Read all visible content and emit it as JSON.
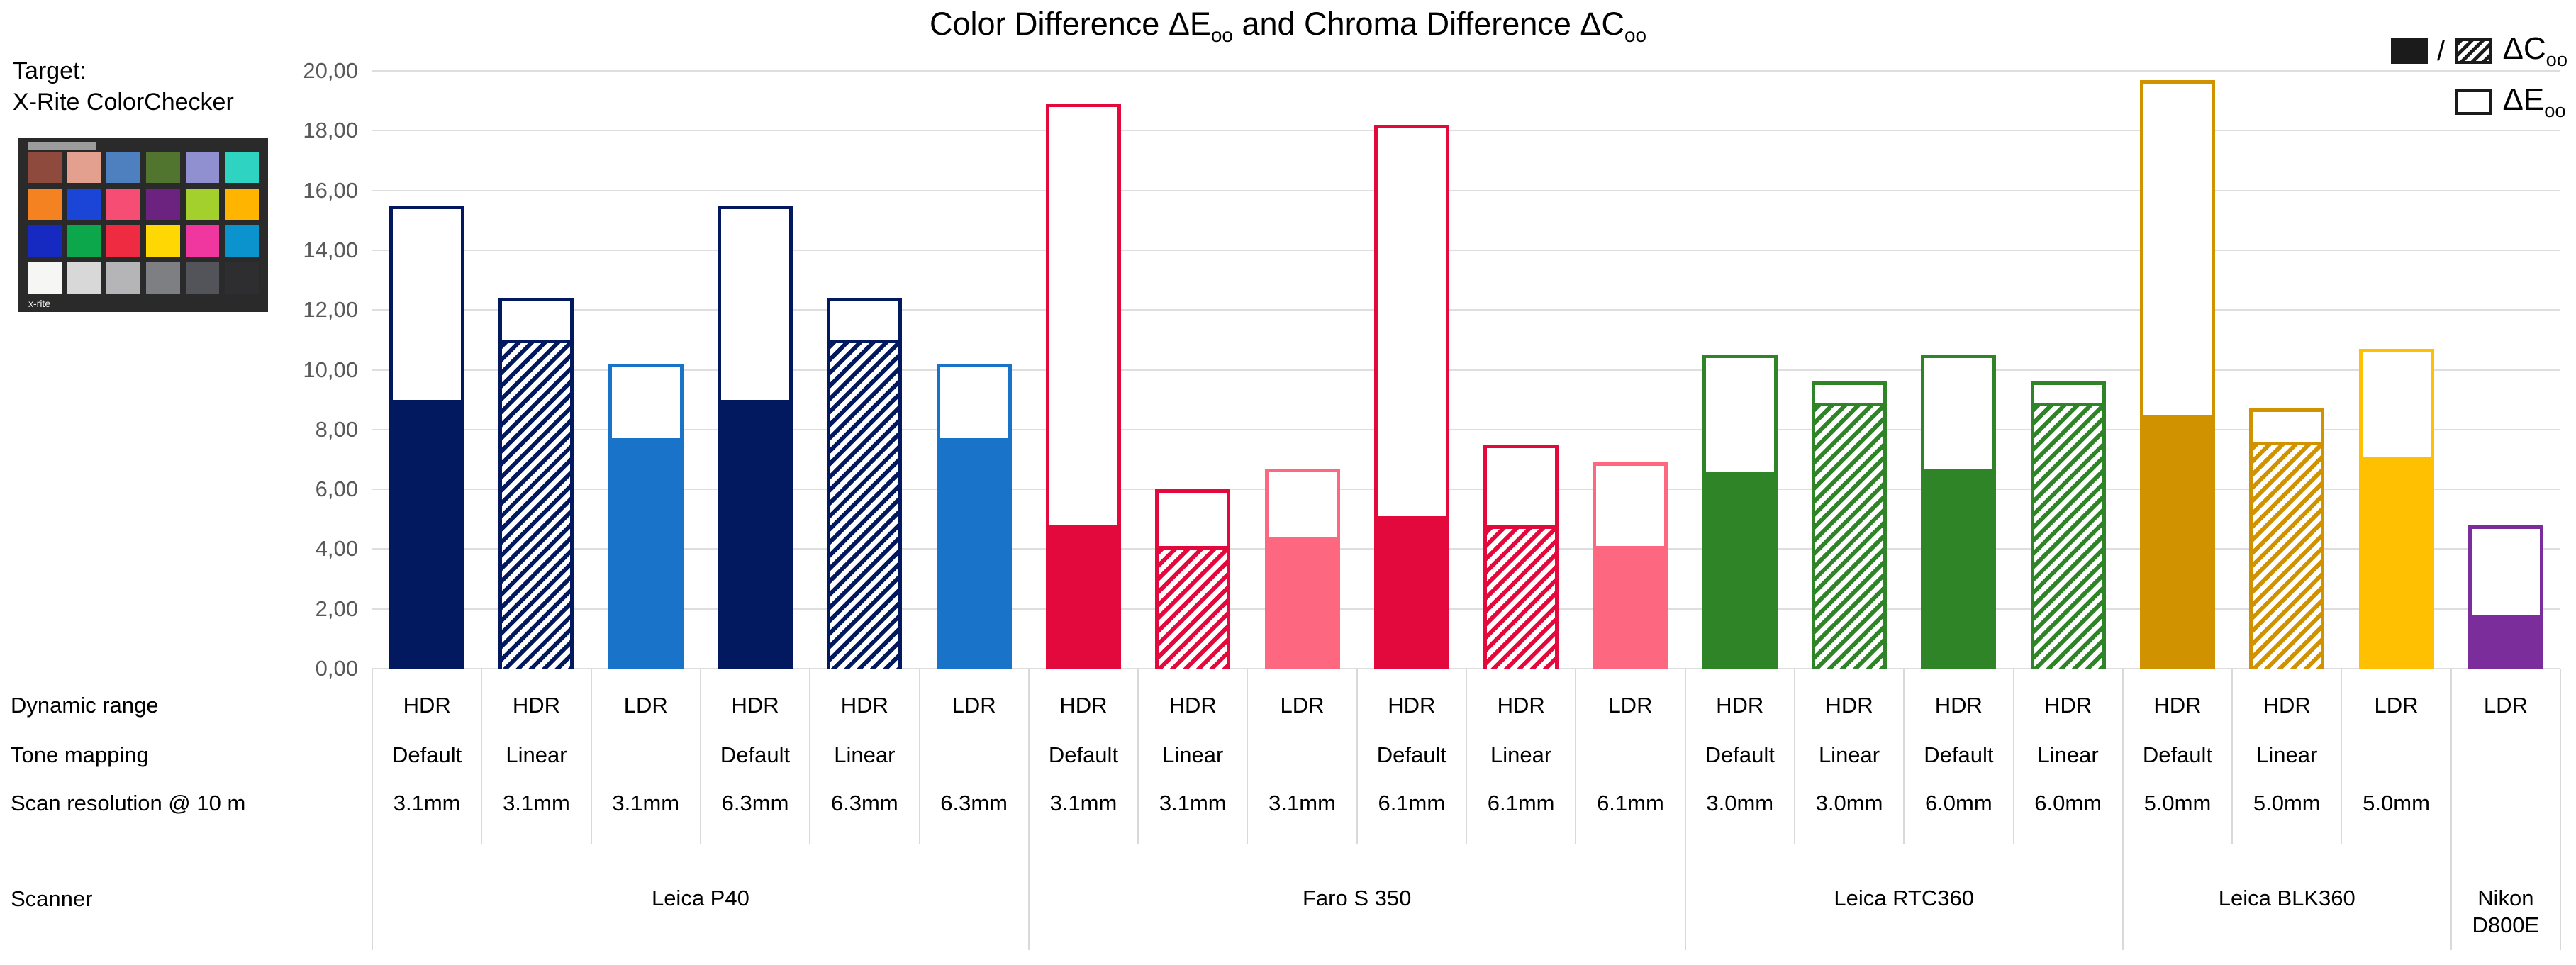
{
  "title": {
    "part1": "Color Difference ΔE",
    "sub1": "oo",
    "part2": " and Chroma Difference ΔC",
    "sub2": "oo"
  },
  "legend": {
    "slash": "/",
    "dc_label": "ΔC",
    "dc_sub": "oo",
    "de_label": "ΔE",
    "de_sub": "oo"
  },
  "target": {
    "caption_line1": "Target:",
    "caption_line2": "X-Rite ColorChecker",
    "brand": "x-rite",
    "patches": [
      "#8d4a3d",
      "#e3a08f",
      "#4e7fbe",
      "#51742e",
      "#9090d0",
      "#2fd3c2",
      "#f58220",
      "#1b45d7",
      "#f54d74",
      "#6c2380",
      "#a3d02c",
      "#ffb400",
      "#1629c0",
      "#0ca64b",
      "#ee2b41",
      "#ffd702",
      "#f0369f",
      "#0b93cd",
      "#f6f6f4",
      "#d8d8d8",
      "#b5b5b7",
      "#7e7f83",
      "#525459",
      "#2e2e30"
    ]
  },
  "y_axis": {
    "tick_labels": [
      "20,00",
      "18,00",
      "16,00",
      "14,00",
      "12,00",
      "10,00",
      "8,00",
      "6,00",
      "4,00",
      "2,00",
      "0,00"
    ]
  },
  "row_headers": {
    "dynamic_range": "Dynamic range",
    "tone_mapping": "Tone mapping",
    "resolution": "Scan resolution @ 10 m",
    "scanner": "Scanner"
  },
  "colors": {
    "gridline": "#dedede",
    "axis_text": "#595959",
    "legend_ink": "#1b1b1b"
  },
  "chart_data": {
    "type": "bar",
    "title": "Color Difference ΔEoo and Chroma Difference ΔCoo",
    "ylabel": "",
    "xlabel": "",
    "ylim": [
      0,
      20
    ],
    "ytick_step": 2,
    "grid": "horizontal",
    "legend": [
      {
        "label": "ΔCoo",
        "style": "filled / hatched"
      },
      {
        "label": "ΔEoo",
        "style": "outline"
      }
    ],
    "series_semantics": {
      "dE": "total outlined bar height = ΔEoo",
      "dC": "filled or hatched lower portion = ΔCoo"
    },
    "groups": [
      {
        "scanner": "Leica P40",
        "bars": [
          {
            "dynamic_range": "HDR",
            "tone_mapping": "Default",
            "resolution": "3.1mm",
            "dE": 15.5,
            "dC": 9.0,
            "color": "#03195f",
            "fill": "solid"
          },
          {
            "dynamic_range": "HDR",
            "tone_mapping": "Linear",
            "resolution": "3.1mm",
            "dE": 12.4,
            "dC": 11.0,
            "color": "#03195f",
            "fill": "hatch"
          },
          {
            "dynamic_range": "LDR",
            "tone_mapping": "",
            "resolution": "3.1mm",
            "dE": 10.2,
            "dC": 7.7,
            "color": "#1873c9",
            "fill": "solid"
          },
          {
            "dynamic_range": "HDR",
            "tone_mapping": "Default",
            "resolution": "6.3mm",
            "dE": 15.5,
            "dC": 9.0,
            "color": "#03195f",
            "fill": "solid"
          },
          {
            "dynamic_range": "HDR",
            "tone_mapping": "Linear",
            "resolution": "6.3mm",
            "dE": 12.4,
            "dC": 11.0,
            "color": "#03195f",
            "fill": "hatch"
          },
          {
            "dynamic_range": "LDR",
            "tone_mapping": "",
            "resolution": "6.3mm",
            "dE": 10.2,
            "dC": 7.7,
            "color": "#1873c9",
            "fill": "solid"
          }
        ]
      },
      {
        "scanner": "Faro S 350",
        "bars": [
          {
            "dynamic_range": "HDR",
            "tone_mapping": "Default",
            "resolution": "3.1mm",
            "dE": 18.9,
            "dC": 4.8,
            "color": "#e4093c",
            "fill": "solid"
          },
          {
            "dynamic_range": "HDR",
            "tone_mapping": "Linear",
            "resolution": "3.1mm",
            "dE": 6.0,
            "dC": 4.1,
            "color": "#e4093c",
            "fill": "hatch"
          },
          {
            "dynamic_range": "LDR",
            "tone_mapping": "",
            "resolution": "3.1mm",
            "dE": 6.7,
            "dC": 4.4,
            "color": "#fd6780",
            "fill": "solid"
          },
          {
            "dynamic_range": "HDR",
            "tone_mapping": "Default",
            "resolution": "6.1mm",
            "dE": 18.2,
            "dC": 5.1,
            "color": "#e4093c",
            "fill": "solid"
          },
          {
            "dynamic_range": "HDR",
            "tone_mapping": "Linear",
            "resolution": "6.1mm",
            "dE": 7.5,
            "dC": 4.8,
            "color": "#e4093c",
            "fill": "hatch"
          },
          {
            "dynamic_range": "LDR",
            "tone_mapping": "",
            "resolution": "6.1mm",
            "dE": 6.9,
            "dC": 4.1,
            "color": "#fd6780",
            "fill": "solid"
          }
        ]
      },
      {
        "scanner": "Leica RTC360",
        "bars": [
          {
            "dynamic_range": "HDR",
            "tone_mapping": "Default",
            "resolution": "3.0mm",
            "dE": 10.5,
            "dC": 6.6,
            "color": "#2e8427",
            "fill": "solid"
          },
          {
            "dynamic_range": "HDR",
            "tone_mapping": "Linear",
            "resolution": "3.0mm",
            "dE": 9.6,
            "dC": 8.9,
            "color": "#2e8427",
            "fill": "hatch"
          },
          {
            "dynamic_range": "HDR",
            "tone_mapping": "Default",
            "resolution": "6.0mm",
            "dE": 10.5,
            "dC": 6.7,
            "color": "#2e8427",
            "fill": "solid"
          },
          {
            "dynamic_range": "HDR",
            "tone_mapping": "Linear",
            "resolution": "6.0mm",
            "dE": 9.6,
            "dC": 8.9,
            "color": "#2e8427",
            "fill": "hatch"
          }
        ]
      },
      {
        "scanner": "Leica BLK360",
        "bars": [
          {
            "dynamic_range": "HDR",
            "tone_mapping": "Default",
            "resolution": "5.0mm",
            "dE": 19.7,
            "dC": 8.5,
            "color": "#d19200",
            "fill": "solid"
          },
          {
            "dynamic_range": "HDR",
            "tone_mapping": "Linear",
            "resolution": "5.0mm",
            "dE": 8.7,
            "dC": 7.6,
            "color": "#d19200",
            "fill": "hatch"
          },
          {
            "dynamic_range": "LDR",
            "tone_mapping": "",
            "resolution": "5.0mm",
            "dE": 10.7,
            "dC": 7.1,
            "color": "#ffc002",
            "fill": "solid"
          }
        ]
      },
      {
        "scanner": "Nikon D800E",
        "bars": [
          {
            "dynamic_range": "LDR",
            "tone_mapping": "",
            "resolution": "",
            "dE": 4.8,
            "dC": 1.8,
            "color": "#7b2d9b",
            "fill": "solid"
          }
        ]
      }
    ]
  }
}
